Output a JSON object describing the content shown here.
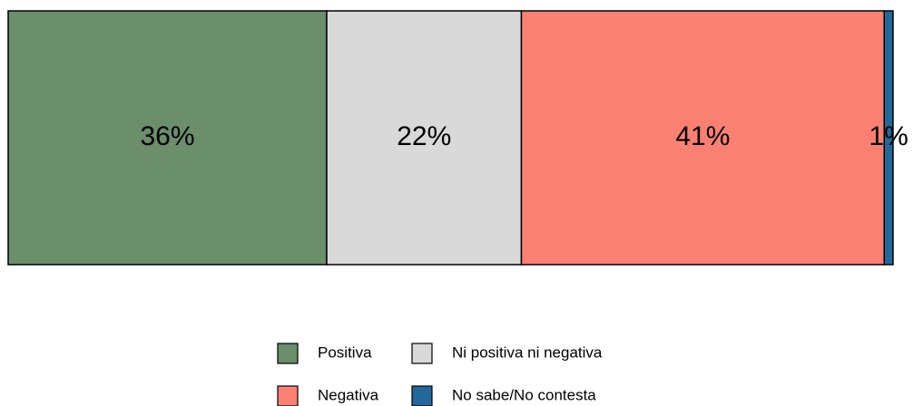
{
  "chart_data": {
    "type": "bar",
    "orientation": "horizontal",
    "stacked": true,
    "xlim": [
      0,
      100
    ],
    "series": [
      {
        "name": "Positiva",
        "color": "#6b8e6b",
        "values": [
          36
        ],
        "value_labels": [
          "36%"
        ]
      },
      {
        "name": "Ni positiva ni negativa",
        "color": "#d9d9d9",
        "values": [
          22
        ],
        "value_labels": [
          "22%"
        ]
      },
      {
        "name": "Negativa",
        "color": "#fa8072",
        "values": [
          41
        ],
        "value_labels": [
          "41%"
        ]
      },
      {
        "name": "No sabe/No contesta",
        "color": "#23689b",
        "values": [
          1
        ],
        "value_labels": [
          "1%"
        ]
      }
    ]
  }
}
